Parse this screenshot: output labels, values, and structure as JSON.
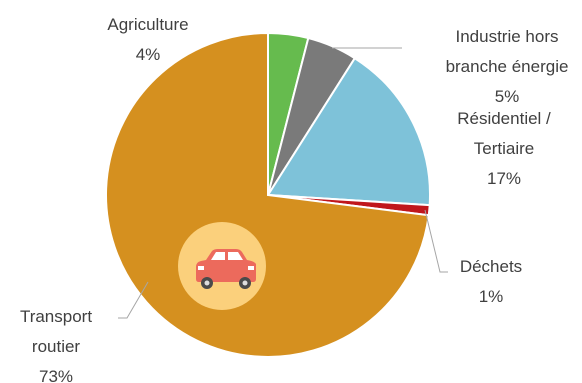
{
  "chart_data": {
    "type": "pie",
    "title": "",
    "start_angle_deg": 0,
    "direction": "clockwise",
    "slices": [
      {
        "lines": [
          "Agriculture",
          "4%"
        ],
        "value": 4,
        "color": "#66bb4e"
      },
      {
        "lines": [
          "Industrie hors",
          "branche énergie",
          "5%"
        ],
        "value": 5,
        "color": "#7a7a7a"
      },
      {
        "lines": [
          "Résidentiel /",
          "Tertiaire",
          "17%"
        ],
        "value": 17,
        "color": "#7ec2d9"
      },
      {
        "lines": [
          "Déchets",
          "1%"
        ],
        "value": 1,
        "color": "#c0171c"
      },
      {
        "lines": [
          "Transport",
          "routier",
          "73%"
        ],
        "value": 73,
        "color": "#d5901f"
      }
    ],
    "car_icon": {
      "name": "car-icon",
      "disc_color": "#fbd07c",
      "body_color": "#ec6a5c"
    }
  }
}
